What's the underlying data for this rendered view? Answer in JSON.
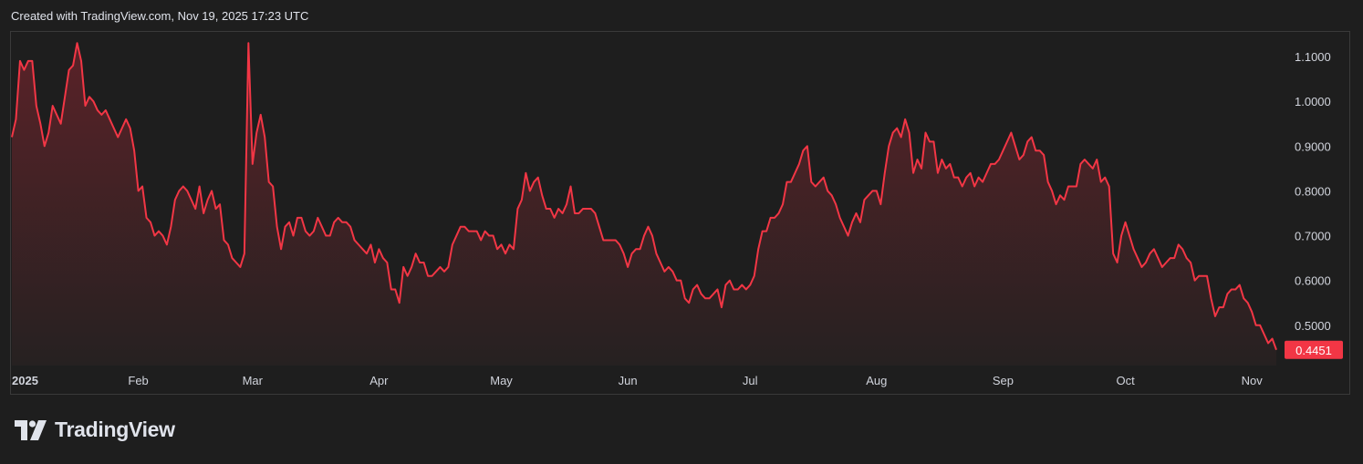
{
  "header": {
    "caption": "Created with TradingView.com, Nov 19, 2025 17:23 UTC"
  },
  "logo": {
    "text": "TradingView",
    "icon": "tradingview-logo-icon"
  },
  "colors": {
    "line": "#f23645",
    "fill_top": "#5a2228",
    "fill_bottom": "#262121",
    "background": "#1e1e1e",
    "badge": "#f23645"
  },
  "chart_data": {
    "type": "area",
    "title": "",
    "xlabel": "",
    "ylabel": "",
    "x_ticks": [
      {
        "label": "2025",
        "day": 0,
        "bold": true
      },
      {
        "label": "Feb",
        "day": 31
      },
      {
        "label": "Mar",
        "day": 59
      },
      {
        "label": "Apr",
        "day": 90
      },
      {
        "label": "May",
        "day": 120
      },
      {
        "label": "Jun",
        "day": 151
      },
      {
        "label": "Jul",
        "day": 181
      },
      {
        "label": "Aug",
        "day": 212
      },
      {
        "label": "Sep",
        "day": 243
      },
      {
        "label": "Oct",
        "day": 273
      },
      {
        "label": "Nov",
        "day": 304
      }
    ],
    "y_ticks": [
      "1.1000",
      "1.0000",
      "0.9000",
      "0.8000",
      "0.7000",
      "0.6000",
      "0.5000"
    ],
    "ylim": [
      0.41,
      1.155
    ],
    "last_price": "0.4451",
    "grid": false,
    "points": [
      [
        0,
        0.92
      ],
      [
        1,
        0.96
      ],
      [
        2,
        1.09
      ],
      [
        3,
        1.07
      ],
      [
        4,
        1.09
      ],
      [
        5,
        1.09
      ],
      [
        6,
        0.99
      ],
      [
        7,
        0.95
      ],
      [
        8,
        0.9
      ],
      [
        9,
        0.93
      ],
      [
        10,
        0.99
      ],
      [
        11,
        0.97
      ],
      [
        12,
        0.95
      ],
      [
        13,
        1.01
      ],
      [
        14,
        1.07
      ],
      [
        15,
        1.08
      ],
      [
        16,
        1.13
      ],
      [
        17,
        1.09
      ],
      [
        18,
        0.99
      ],
      [
        19,
        1.01
      ],
      [
        20,
        1.0
      ],
      [
        21,
        0.98
      ],
      [
        22,
        0.97
      ],
      [
        23,
        0.98
      ],
      [
        24,
        0.96
      ],
      [
        25,
        0.94
      ],
      [
        26,
        0.92
      ],
      [
        27,
        0.94
      ],
      [
        28,
        0.96
      ],
      [
        29,
        0.94
      ],
      [
        30,
        0.89
      ],
      [
        31,
        0.8
      ],
      [
        32,
        0.81
      ],
      [
        33,
        0.74
      ],
      [
        34,
        0.73
      ],
      [
        35,
        0.7
      ],
      [
        36,
        0.71
      ],
      [
        37,
        0.7
      ],
      [
        38,
        0.68
      ],
      [
        39,
        0.72
      ],
      [
        40,
        0.78
      ],
      [
        41,
        0.8
      ],
      [
        42,
        0.81
      ],
      [
        43,
        0.8
      ],
      [
        44,
        0.78
      ],
      [
        45,
        0.76
      ],
      [
        46,
        0.81
      ],
      [
        47,
        0.75
      ],
      [
        48,
        0.78
      ],
      [
        49,
        0.8
      ],
      [
        50,
        0.76
      ],
      [
        51,
        0.77
      ],
      [
        52,
        0.69
      ],
      [
        53,
        0.68
      ],
      [
        54,
        0.65
      ],
      [
        55,
        0.64
      ],
      [
        56,
        0.63
      ],
      [
        57,
        0.66
      ],
      [
        58,
        1.13
      ],
      [
        59,
        0.86
      ],
      [
        60,
        0.93
      ],
      [
        61,
        0.97
      ],
      [
        62,
        0.92
      ],
      [
        63,
        0.82
      ],
      [
        64,
        0.81
      ],
      [
        65,
        0.72
      ],
      [
        66,
        0.67
      ],
      [
        67,
        0.72
      ],
      [
        68,
        0.73
      ],
      [
        69,
        0.7
      ],
      [
        70,
        0.74
      ],
      [
        71,
        0.74
      ],
      [
        72,
        0.71
      ],
      [
        73,
        0.7
      ],
      [
        74,
        0.71
      ],
      [
        75,
        0.74
      ],
      [
        76,
        0.72
      ],
      [
        77,
        0.7
      ],
      [
        78,
        0.7
      ],
      [
        79,
        0.73
      ],
      [
        80,
        0.74
      ],
      [
        81,
        0.73
      ],
      [
        82,
        0.73
      ],
      [
        83,
        0.72
      ],
      [
        84,
        0.69
      ],
      [
        85,
        0.68
      ],
      [
        86,
        0.67
      ],
      [
        87,
        0.66
      ],
      [
        88,
        0.68
      ],
      [
        89,
        0.64
      ],
      [
        90,
        0.67
      ],
      [
        91,
        0.65
      ],
      [
        92,
        0.64
      ],
      [
        93,
        0.58
      ],
      [
        94,
        0.58
      ],
      [
        95,
        0.55
      ],
      [
        96,
        0.63
      ],
      [
        97,
        0.61
      ],
      [
        98,
        0.63
      ],
      [
        99,
        0.66
      ],
      [
        100,
        0.64
      ],
      [
        101,
        0.64
      ],
      [
        102,
        0.61
      ],
      [
        103,
        0.61
      ],
      [
        104,
        0.62
      ],
      [
        105,
        0.63
      ],
      [
        106,
        0.62
      ],
      [
        107,
        0.63
      ],
      [
        108,
        0.68
      ],
      [
        109,
        0.7
      ],
      [
        110,
        0.72
      ],
      [
        111,
        0.72
      ],
      [
        112,
        0.71
      ],
      [
        113,
        0.71
      ],
      [
        114,
        0.71
      ],
      [
        115,
        0.69
      ],
      [
        116,
        0.71
      ],
      [
        117,
        0.7
      ],
      [
        118,
        0.7
      ],
      [
        119,
        0.67
      ],
      [
        120,
        0.68
      ],
      [
        121,
        0.66
      ],
      [
        122,
        0.68
      ],
      [
        123,
        0.67
      ],
      [
        124,
        0.76
      ],
      [
        125,
        0.78
      ],
      [
        126,
        0.84
      ],
      [
        127,
        0.8
      ],
      [
        128,
        0.82
      ],
      [
        129,
        0.83
      ],
      [
        130,
        0.79
      ],
      [
        131,
        0.76
      ],
      [
        132,
        0.76
      ],
      [
        133,
        0.74
      ],
      [
        134,
        0.76
      ],
      [
        135,
        0.75
      ],
      [
        136,
        0.77
      ],
      [
        137,
        0.81
      ],
      [
        138,
        0.75
      ],
      [
        139,
        0.75
      ],
      [
        140,
        0.76
      ],
      [
        141,
        0.76
      ],
      [
        142,
        0.76
      ],
      [
        143,
        0.75
      ],
      [
        144,
        0.72
      ],
      [
        145,
        0.69
      ],
      [
        146,
        0.69
      ],
      [
        147,
        0.69
      ],
      [
        148,
        0.69
      ],
      [
        149,
        0.68
      ],
      [
        150,
        0.66
      ],
      [
        151,
        0.63
      ],
      [
        152,
        0.66
      ],
      [
        153,
        0.67
      ],
      [
        154,
        0.67
      ],
      [
        155,
        0.7
      ],
      [
        156,
        0.72
      ],
      [
        157,
        0.7
      ],
      [
        158,
        0.66
      ],
      [
        159,
        0.64
      ],
      [
        160,
        0.62
      ],
      [
        161,
        0.63
      ],
      [
        162,
        0.62
      ],
      [
        163,
        0.6
      ],
      [
        164,
        0.6
      ],
      [
        165,
        0.56
      ],
      [
        166,
        0.55
      ],
      [
        167,
        0.58
      ],
      [
        168,
        0.59
      ],
      [
        169,
        0.57
      ],
      [
        170,
        0.56
      ],
      [
        171,
        0.56
      ],
      [
        172,
        0.57
      ],
      [
        173,
        0.58
      ],
      [
        174,
        0.54
      ],
      [
        175,
        0.59
      ],
      [
        176,
        0.6
      ],
      [
        177,
        0.58
      ],
      [
        178,
        0.58
      ],
      [
        179,
        0.59
      ],
      [
        180,
        0.58
      ],
      [
        181,
        0.59
      ],
      [
        182,
        0.61
      ],
      [
        183,
        0.67
      ],
      [
        184,
        0.71
      ],
      [
        185,
        0.71
      ],
      [
        186,
        0.74
      ],
      [
        187,
        0.74
      ],
      [
        188,
        0.75
      ],
      [
        189,
        0.77
      ],
      [
        190,
        0.82
      ],
      [
        191,
        0.82
      ],
      [
        192,
        0.84
      ],
      [
        193,
        0.86
      ],
      [
        194,
        0.89
      ],
      [
        195,
        0.9
      ],
      [
        196,
        0.82
      ],
      [
        197,
        0.81
      ],
      [
        198,
        0.82
      ],
      [
        199,
        0.83
      ],
      [
        200,
        0.8
      ],
      [
        201,
        0.79
      ],
      [
        202,
        0.77
      ],
      [
        203,
        0.74
      ],
      [
        204,
        0.72
      ],
      [
        205,
        0.7
      ],
      [
        206,
        0.73
      ],
      [
        207,
        0.75
      ],
      [
        208,
        0.73
      ],
      [
        209,
        0.78
      ],
      [
        210,
        0.79
      ],
      [
        211,
        0.8
      ],
      [
        212,
        0.8
      ],
      [
        213,
        0.77
      ],
      [
        214,
        0.84
      ],
      [
        215,
        0.9
      ],
      [
        216,
        0.93
      ],
      [
        217,
        0.94
      ],
      [
        218,
        0.92
      ],
      [
        219,
        0.96
      ],
      [
        220,
        0.93
      ],
      [
        221,
        0.84
      ],
      [
        222,
        0.87
      ],
      [
        223,
        0.85
      ],
      [
        224,
        0.93
      ],
      [
        225,
        0.91
      ],
      [
        226,
        0.91
      ],
      [
        227,
        0.84
      ],
      [
        228,
        0.87
      ],
      [
        229,
        0.85
      ],
      [
        230,
        0.86
      ],
      [
        231,
        0.83
      ],
      [
        232,
        0.83
      ],
      [
        233,
        0.81
      ],
      [
        234,
        0.83
      ],
      [
        235,
        0.84
      ],
      [
        236,
        0.81
      ],
      [
        237,
        0.83
      ],
      [
        238,
        0.82
      ],
      [
        239,
        0.84
      ],
      [
        240,
        0.86
      ],
      [
        241,
        0.86
      ],
      [
        242,
        0.87
      ],
      [
        243,
        0.89
      ],
      [
        244,
        0.91
      ],
      [
        245,
        0.93
      ],
      [
        246,
        0.9
      ],
      [
        247,
        0.87
      ],
      [
        248,
        0.88
      ],
      [
        249,
        0.91
      ],
      [
        250,
        0.92
      ],
      [
        251,
        0.89
      ],
      [
        252,
        0.89
      ],
      [
        253,
        0.88
      ],
      [
        254,
        0.82
      ],
      [
        255,
        0.8
      ],
      [
        256,
        0.77
      ],
      [
        257,
        0.79
      ],
      [
        258,
        0.78
      ],
      [
        259,
        0.81
      ],
      [
        260,
        0.81
      ],
      [
        261,
        0.81
      ],
      [
        262,
        0.86
      ],
      [
        263,
        0.87
      ],
      [
        264,
        0.86
      ],
      [
        265,
        0.85
      ],
      [
        266,
        0.87
      ],
      [
        267,
        0.82
      ],
      [
        268,
        0.83
      ],
      [
        269,
        0.81
      ],
      [
        270,
        0.66
      ],
      [
        271,
        0.64
      ],
      [
        272,
        0.7
      ],
      [
        273,
        0.73
      ],
      [
        274,
        0.7
      ],
      [
        275,
        0.67
      ],
      [
        276,
        0.65
      ],
      [
        277,
        0.63
      ],
      [
        278,
        0.64
      ],
      [
        279,
        0.66
      ],
      [
        280,
        0.67
      ],
      [
        281,
        0.65
      ],
      [
        282,
        0.63
      ],
      [
        283,
        0.64
      ],
      [
        284,
        0.65
      ],
      [
        285,
        0.65
      ],
      [
        286,
        0.68
      ],
      [
        287,
        0.67
      ],
      [
        288,
        0.65
      ],
      [
        289,
        0.64
      ],
      [
        290,
        0.6
      ],
      [
        291,
        0.61
      ],
      [
        292,
        0.61
      ],
      [
        293,
        0.61
      ],
      [
        294,
        0.56
      ],
      [
        295,
        0.52
      ],
      [
        296,
        0.54
      ],
      [
        297,
        0.54
      ],
      [
        298,
        0.57
      ],
      [
        299,
        0.58
      ],
      [
        300,
        0.58
      ],
      [
        301,
        0.59
      ],
      [
        302,
        0.56
      ],
      [
        303,
        0.55
      ],
      [
        304,
        0.53
      ],
      [
        305,
        0.5
      ],
      [
        306,
        0.5
      ],
      [
        307,
        0.48
      ],
      [
        308,
        0.46
      ],
      [
        309,
        0.47
      ],
      [
        310,
        0.4451
      ]
    ]
  }
}
